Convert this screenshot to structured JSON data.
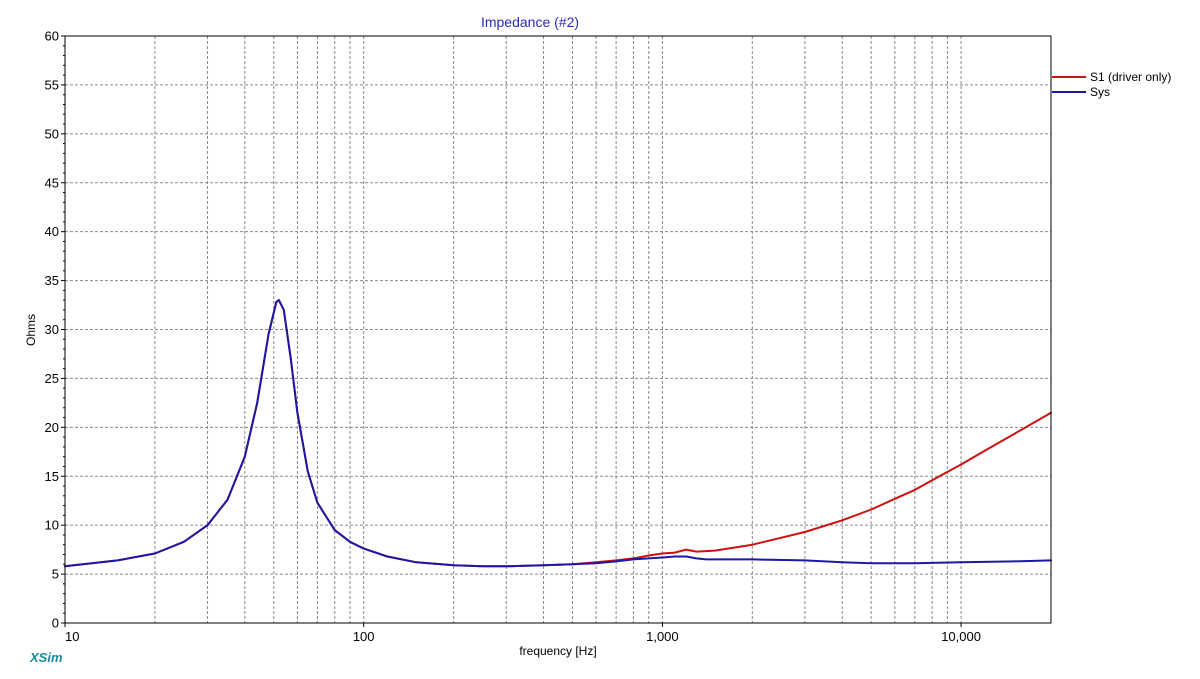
{
  "chart_data": {
    "type": "line",
    "title": "Impedance (#2)",
    "xlabel": "frequency [Hz]",
    "ylabel": "Ohms",
    "x_scale": "log",
    "xlim": [
      10,
      20000
    ],
    "ylim": [
      0,
      60
    ],
    "x_ticks": [
      10,
      100,
      1000,
      10000
    ],
    "x_tick_labels": [
      "10",
      "100",
      "1,000",
      "10,000"
    ],
    "y_ticks": [
      0,
      5,
      10,
      15,
      20,
      25,
      30,
      35,
      40,
      45,
      50,
      55,
      60
    ],
    "y_tick_labels": [
      "0",
      "5",
      "10",
      "15",
      "20",
      "25",
      "30",
      "35",
      "40",
      "45",
      "50",
      "55",
      "60"
    ],
    "grid": true,
    "legend_position": "top-right",
    "series": [
      {
        "name": "S1 (driver only)",
        "color": "#cc1111",
        "points": [
          [
            10,
            5.8
          ],
          [
            15,
            6.4
          ],
          [
            20,
            7.1
          ],
          [
            25,
            8.3
          ],
          [
            30,
            10.0
          ],
          [
            35,
            12.6
          ],
          [
            40,
            17.0
          ],
          [
            44,
            22.5
          ],
          [
            48,
            29.5
          ],
          [
            51,
            32.8
          ],
          [
            52,
            33.0
          ],
          [
            54,
            32.0
          ],
          [
            57,
            27.0
          ],
          [
            60,
            21.5
          ],
          [
            65,
            15.5
          ],
          [
            70,
            12.3
          ],
          [
            80,
            9.5
          ],
          [
            90,
            8.3
          ],
          [
            100,
            7.6
          ],
          [
            120,
            6.8
          ],
          [
            150,
            6.2
          ],
          [
            200,
            5.9
          ],
          [
            250,
            5.8
          ],
          [
            300,
            5.8
          ],
          [
            400,
            5.9
          ],
          [
            500,
            6.0
          ],
          [
            600,
            6.2
          ],
          [
            700,
            6.4
          ],
          [
            800,
            6.6
          ],
          [
            900,
            6.9
          ],
          [
            1000,
            7.1
          ],
          [
            1100,
            7.2
          ],
          [
            1200,
            7.5
          ],
          [
            1300,
            7.3
          ],
          [
            1500,
            7.4
          ],
          [
            2000,
            8.0
          ],
          [
            3000,
            9.3
          ],
          [
            4000,
            10.5
          ],
          [
            5000,
            11.6
          ],
          [
            6000,
            12.7
          ],
          [
            7000,
            13.6
          ],
          [
            8000,
            14.6
          ],
          [
            10000,
            16.2
          ],
          [
            12000,
            17.6
          ],
          [
            15000,
            19.3
          ],
          [
            20000,
            21.5
          ]
        ]
      },
      {
        "name": "Sys",
        "color": "#1a1aa6",
        "points": [
          [
            10,
            5.8
          ],
          [
            15,
            6.4
          ],
          [
            20,
            7.1
          ],
          [
            25,
            8.3
          ],
          [
            30,
            10.0
          ],
          [
            35,
            12.6
          ],
          [
            40,
            17.0
          ],
          [
            44,
            22.5
          ],
          [
            48,
            29.5
          ],
          [
            51,
            32.8
          ],
          [
            52,
            33.0
          ],
          [
            54,
            32.0
          ],
          [
            57,
            27.0
          ],
          [
            60,
            21.5
          ],
          [
            65,
            15.5
          ],
          [
            70,
            12.3
          ],
          [
            80,
            9.5
          ],
          [
            90,
            8.3
          ],
          [
            100,
            7.6
          ],
          [
            120,
            6.8
          ],
          [
            150,
            6.2
          ],
          [
            200,
            5.9
          ],
          [
            250,
            5.8
          ],
          [
            300,
            5.8
          ],
          [
            400,
            5.9
          ],
          [
            500,
            6.0
          ],
          [
            600,
            6.1
          ],
          [
            700,
            6.3
          ],
          [
            800,
            6.5
          ],
          [
            900,
            6.6
          ],
          [
            1000,
            6.7
          ],
          [
            1100,
            6.8
          ],
          [
            1200,
            6.8
          ],
          [
            1300,
            6.6
          ],
          [
            1400,
            6.5
          ],
          [
            2000,
            6.5
          ],
          [
            3000,
            6.4
          ],
          [
            4000,
            6.2
          ],
          [
            5000,
            6.1
          ],
          [
            7000,
            6.1
          ],
          [
            10000,
            6.2
          ],
          [
            15000,
            6.3
          ],
          [
            20000,
            6.4
          ]
        ]
      }
    ]
  },
  "brand": {
    "label": "XSim",
    "color": "#1a8a9a"
  },
  "colors": {
    "title": "#2b2bb5",
    "grid": "#8a8a8a",
    "frame": "#000000",
    "background": "#ffffff"
  }
}
